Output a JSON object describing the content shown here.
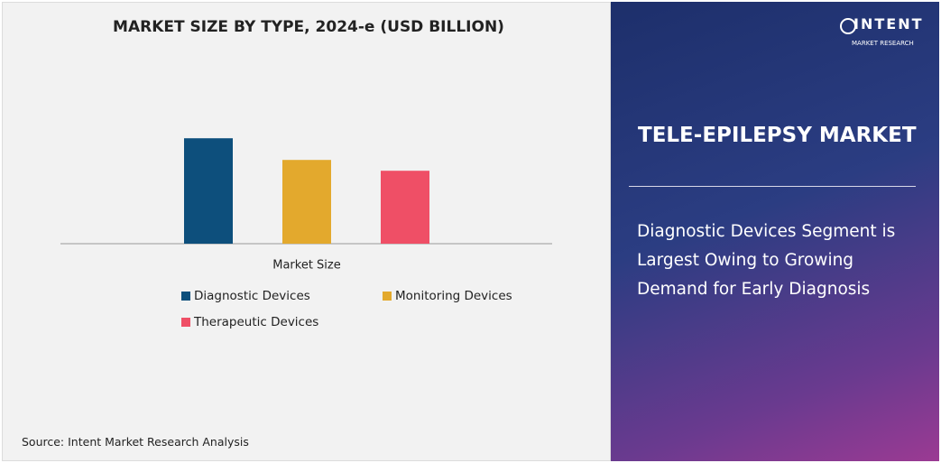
{
  "chart_data": {
    "type": "bar",
    "title": "MARKET SIZE BY TYPE, 2024-e (USD BILLION)",
    "categories": [
      "Market Size"
    ],
    "series": [
      {
        "name": "Diagnostic Devices",
        "color": "#0d4f7c",
        "values": [
          1.46
        ]
      },
      {
        "name": "Monitoring Devices",
        "color": "#e3a92d",
        "values": [
          1.16
        ]
      },
      {
        "name": "Therapeutic Devices",
        "color": "#ef4f66",
        "values": [
          1.01
        ]
      }
    ],
    "ylim": [
      0,
      2
    ],
    "legend": "bottom"
  },
  "source": "Source: Intent Market Research Analysis",
  "panel": {
    "logo_name": "INTENT",
    "logo_sub": "MARKET RESEARCH",
    "heading": "TELE-EPILEPSY MARKET",
    "summary": "Diagnostic Devices Segment is Largest Owing to Growing Demand for Early Diagnosis"
  }
}
